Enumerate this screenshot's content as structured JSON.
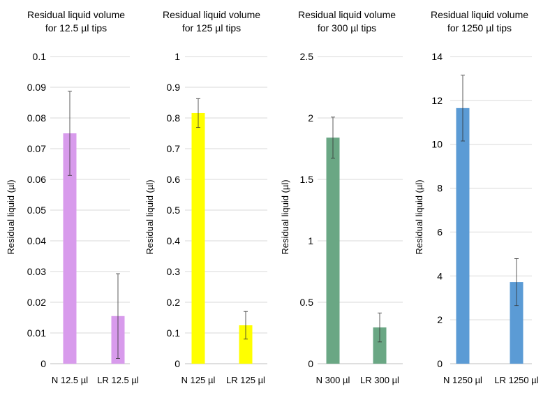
{
  "chart_data": [
    {
      "type": "bar",
      "title": [
        "Residual liquid volume",
        "for 12.5 µl tips"
      ],
      "ylabel": "Residual liquid (µl)",
      "categories": [
        "N 12.5 µl",
        "LR 12.5 µl"
      ],
      "values": [
        0.075,
        0.0155
      ],
      "errors": [
        0.0137,
        0.0138
      ],
      "ylim": [
        0,
        0.1
      ],
      "ticks": [
        0,
        0.01,
        0.02,
        0.03,
        0.04,
        0.05,
        0.06,
        0.07,
        0.08,
        0.09,
        0.1
      ],
      "tick_labels": [
        "0",
        "0.01",
        "0.02",
        "0.03",
        "0.04",
        "0.05",
        "0.06",
        "0.07",
        "0.08",
        "0.09",
        "0.1"
      ],
      "color": "#D89BEC",
      "grid": true
    },
    {
      "type": "bar",
      "title": [
        "Residual liquid volume",
        "for 125 µl tips"
      ],
      "ylabel": "Residual liquid (µl)",
      "categories": [
        "N 125 µl",
        "LR 125 µl"
      ],
      "values": [
        0.816,
        0.125
      ],
      "errors": [
        0.047,
        0.045
      ],
      "ylim": [
        0,
        1
      ],
      "ticks": [
        0,
        0.1,
        0.2,
        0.3,
        0.4,
        0.5,
        0.6,
        0.7,
        0.8,
        0.9,
        1
      ],
      "tick_labels": [
        "0",
        "0.1",
        "0.2",
        "0.3",
        "0.4",
        "0.5",
        "0.6",
        "0.7",
        "0.8",
        "0.9",
        "1"
      ],
      "color": "#FFFF00",
      "grid": true
    },
    {
      "type": "bar",
      "title": [
        "Residual liquid volume",
        "for 300 µl tips"
      ],
      "ylabel": "Residual liquid (µl)",
      "categories": [
        "N 300 µl",
        "LR 300 µl"
      ],
      "values": [
        1.84,
        0.295
      ],
      "errors": [
        0.167,
        0.118
      ],
      "ylim": [
        0,
        2.5
      ],
      "ticks": [
        0,
        0.5,
        1,
        1.5,
        2,
        2.5
      ],
      "tick_labels": [
        "0",
        "0.5",
        "1",
        "1.5",
        "2",
        "2.5"
      ],
      "color": "#6AA784",
      "grid": true
    },
    {
      "type": "bar",
      "title": [
        "Residual liquid volume",
        "for 1250 µl tips"
      ],
      "ylabel": "Residual liquid (µl)",
      "categories": [
        "N 1250 µl",
        "LR 1250 µl"
      ],
      "values": [
        11.65,
        3.72
      ],
      "errors": [
        1.5,
        1.07
      ],
      "ylim": [
        0,
        14
      ],
      "ticks": [
        0,
        2,
        4,
        6,
        8,
        10,
        12,
        14
      ],
      "tick_labels": [
        "0",
        "2",
        "4",
        "6",
        "8",
        "10",
        "12",
        "14"
      ],
      "color": "#5B9BD5",
      "grid": true
    }
  ]
}
